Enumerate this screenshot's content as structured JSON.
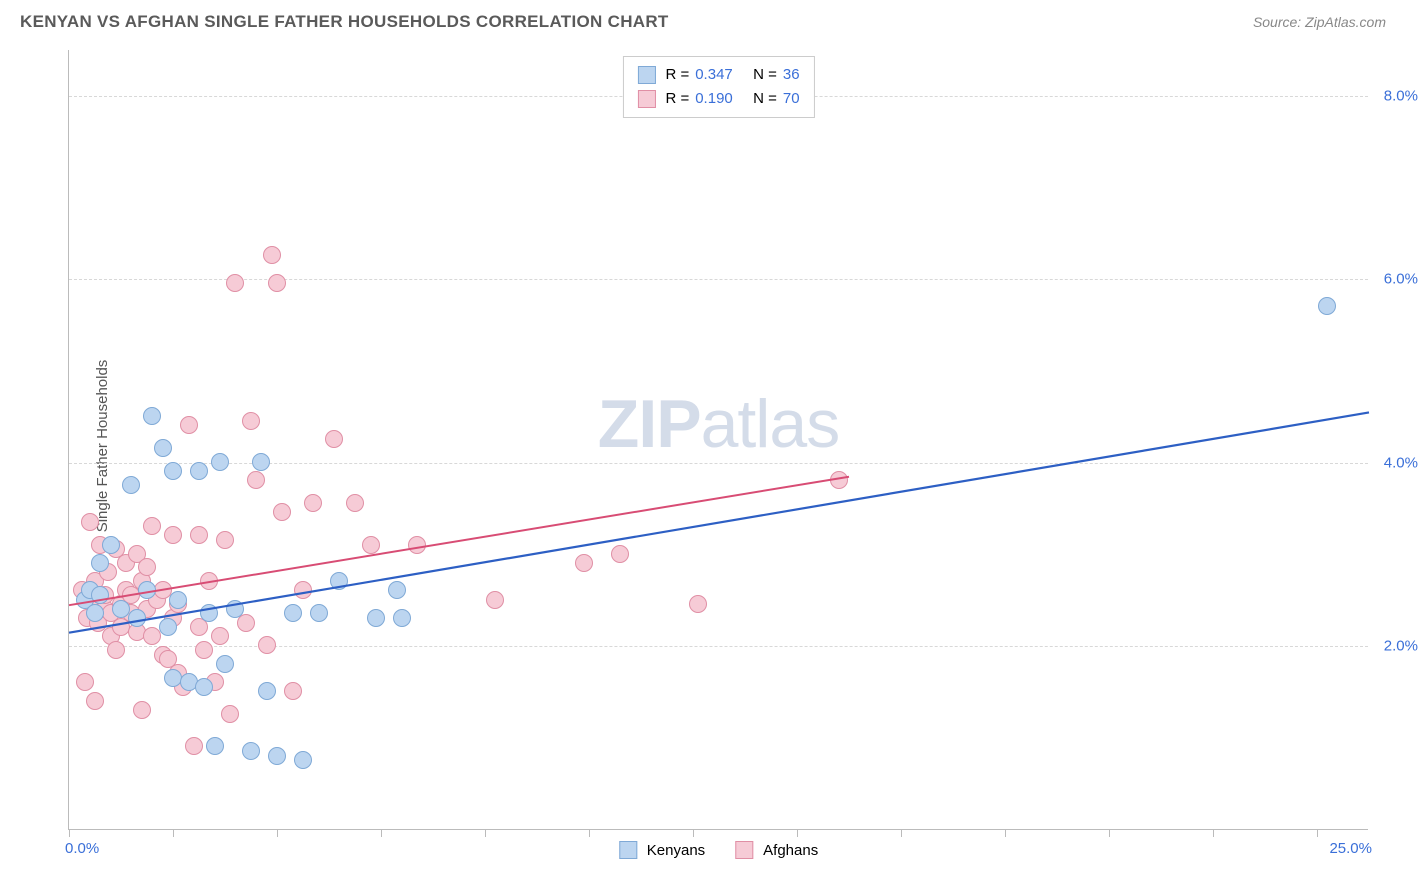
{
  "title": "KENYAN VS AFGHAN SINGLE FATHER HOUSEHOLDS CORRELATION CHART",
  "source": "Source: ZipAtlas.com",
  "ylabel": "Single Father Households",
  "watermark_bold": "ZIP",
  "watermark_light": "atlas",
  "chart": {
    "type": "scatter",
    "xlim": [
      0,
      25
    ],
    "ylim": [
      0,
      8.5
    ],
    "x_axis_min_label": "0.0%",
    "x_axis_max_label": "25.0%",
    "x_tick_positions": [
      0,
      2,
      4,
      6,
      8,
      10,
      12,
      14,
      16,
      18,
      20,
      22,
      24
    ],
    "y_ticks": [
      {
        "v": 2.0,
        "label": "2.0%"
      },
      {
        "v": 4.0,
        "label": "4.0%"
      },
      {
        "v": 6.0,
        "label": "6.0%"
      },
      {
        "v": 8.0,
        "label": "8.0%"
      }
    ],
    "background_color": "#ffffff",
    "grid_color": "#d8d8d8",
    "axis_color": "#bbbbbb",
    "tick_label_color": "#3a6fd8",
    "marker_radius": 9,
    "series": [
      {
        "name": "Kenyans",
        "fill": "#bcd5f0",
        "stroke": "#7fa9d6",
        "R": "0.347",
        "N": "36",
        "trend": {
          "x1": 0,
          "y1": 2.15,
          "x2": 25,
          "y2": 4.55,
          "stroke": "#2d5fc4",
          "width": 2.2
        },
        "points": [
          [
            0.3,
            2.5
          ],
          [
            0.4,
            2.6
          ],
          [
            0.5,
            2.35
          ],
          [
            0.6,
            2.9
          ],
          [
            0.6,
            2.55
          ],
          [
            0.8,
            3.1
          ],
          [
            1.0,
            2.4
          ],
          [
            1.2,
            3.75
          ],
          [
            1.3,
            2.3
          ],
          [
            1.5,
            2.6
          ],
          [
            1.6,
            4.5
          ],
          [
            1.8,
            4.15
          ],
          [
            1.9,
            2.2
          ],
          [
            2.0,
            3.9
          ],
          [
            2.0,
            1.65
          ],
          [
            2.1,
            2.5
          ],
          [
            2.3,
            1.6
          ],
          [
            2.5,
            3.9
          ],
          [
            2.6,
            1.55
          ],
          [
            2.7,
            2.35
          ],
          [
            2.8,
            0.9
          ],
          [
            2.9,
            4.0
          ],
          [
            3.0,
            1.8
          ],
          [
            3.2,
            2.4
          ],
          [
            3.5,
            0.85
          ],
          [
            3.7,
            4.0
          ],
          [
            3.8,
            1.5
          ],
          [
            4.0,
            0.8
          ],
          [
            4.3,
            2.35
          ],
          [
            4.5,
            0.75
          ],
          [
            4.8,
            2.35
          ],
          [
            5.2,
            2.7
          ],
          [
            5.9,
            2.3
          ],
          [
            6.3,
            2.6
          ],
          [
            6.4,
            2.3
          ],
          [
            24.2,
            5.7
          ]
        ]
      },
      {
        "name": "Afghans",
        "fill": "#f6cbd6",
        "stroke": "#e08fa5",
        "R": "0.190",
        "N": "70",
        "trend": {
          "x1": 0,
          "y1": 2.45,
          "x2": 15,
          "y2": 3.85,
          "stroke": "#d84c74",
          "width": 2.0
        },
        "points": [
          [
            0.25,
            2.6
          ],
          [
            0.3,
            1.6
          ],
          [
            0.35,
            2.3
          ],
          [
            0.4,
            3.35
          ],
          [
            0.4,
            2.5
          ],
          [
            0.5,
            1.4
          ],
          [
            0.5,
            2.7
          ],
          [
            0.55,
            2.25
          ],
          [
            0.6,
            2.55
          ],
          [
            0.6,
            3.1
          ],
          [
            0.7,
            2.4
          ],
          [
            0.7,
            2.55
          ],
          [
            0.75,
            2.8
          ],
          [
            0.8,
            2.1
          ],
          [
            0.8,
            2.35
          ],
          [
            0.9,
            1.95
          ],
          [
            0.9,
            3.05
          ],
          [
            1.0,
            2.45
          ],
          [
            1.0,
            2.2
          ],
          [
            1.1,
            2.6
          ],
          [
            1.1,
            2.9
          ],
          [
            1.2,
            2.55
          ],
          [
            1.2,
            2.35
          ],
          [
            1.3,
            3.0
          ],
          [
            1.3,
            2.15
          ],
          [
            1.4,
            2.7
          ],
          [
            1.4,
            1.3
          ],
          [
            1.5,
            2.85
          ],
          [
            1.5,
            2.4
          ],
          [
            1.6,
            2.1
          ],
          [
            1.6,
            3.3
          ],
          [
            1.7,
            2.5
          ],
          [
            1.8,
            1.9
          ],
          [
            1.8,
            2.6
          ],
          [
            1.9,
            1.85
          ],
          [
            2.0,
            2.3
          ],
          [
            2.0,
            3.2
          ],
          [
            2.1,
            1.7
          ],
          [
            2.1,
            2.45
          ],
          [
            2.2,
            1.55
          ],
          [
            2.3,
            4.4
          ],
          [
            2.4,
            0.9
          ],
          [
            2.5,
            2.2
          ],
          [
            2.5,
            3.2
          ],
          [
            2.6,
            1.95
          ],
          [
            2.7,
            2.7
          ],
          [
            2.8,
            1.6
          ],
          [
            2.9,
            2.1
          ],
          [
            3.0,
            3.15
          ],
          [
            3.1,
            1.25
          ],
          [
            3.2,
            5.95
          ],
          [
            3.4,
            2.25
          ],
          [
            3.5,
            4.45
          ],
          [
            3.6,
            3.8
          ],
          [
            3.8,
            2.0
          ],
          [
            3.9,
            6.25
          ],
          [
            4.0,
            5.95
          ],
          [
            4.1,
            3.45
          ],
          [
            4.3,
            1.5
          ],
          [
            4.5,
            2.6
          ],
          [
            4.7,
            3.55
          ],
          [
            5.1,
            4.25
          ],
          [
            5.5,
            3.55
          ],
          [
            5.8,
            3.1
          ],
          [
            6.7,
            3.1
          ],
          [
            8.2,
            2.5
          ],
          [
            9.9,
            2.9
          ],
          [
            10.6,
            3.0
          ],
          [
            12.1,
            2.45
          ],
          [
            14.8,
            3.8
          ]
        ]
      }
    ]
  },
  "legend_bottom": {
    "a_label": "Kenyans",
    "b_label": "Afghans"
  },
  "legend_stats_labels": {
    "R": "R =",
    "N": "N ="
  }
}
